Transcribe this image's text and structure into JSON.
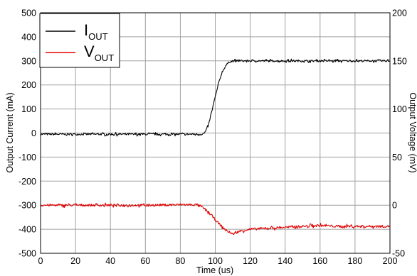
{
  "chart_data": {
    "type": "line",
    "title": "",
    "xlabel": "Time (us)",
    "ylabel_left": "Output Current (mA)",
    "ylabel_right": "Output Voltage (mV)",
    "xlim": [
      0,
      200
    ],
    "ylim_left": [
      -500,
      500
    ],
    "ylim_right": [
      -50,
      200
    ],
    "x_ticks": [
      "0",
      "20",
      "40",
      "60",
      "80",
      "100",
      "120",
      "140",
      "160",
      "180",
      "200"
    ],
    "y_left_ticks": [
      "500",
      "400",
      "300",
      "200",
      "100",
      "0",
      "-100",
      "-200",
      "-300",
      "-400",
      "-500"
    ],
    "y_right_ticks": [
      "200",
      "150",
      "100",
      "50",
      "0",
      "-50"
    ],
    "grid": true,
    "legend_position": "top-left",
    "series": [
      {
        "name": "I",
        "subscript": "OUT",
        "axis": "left",
        "color": "#000000",
        "x": [
          0,
          20,
          40,
          60,
          80,
          90,
          92,
          94,
          96,
          98,
          100,
          102,
          104,
          106,
          108,
          110,
          120,
          140,
          160,
          180,
          200
        ],
        "y": [
          -5,
          -5,
          -5,
          -5,
          -5,
          -5,
          -5,
          0,
          30,
          90,
          150,
          210,
          255,
          280,
          296,
          300,
          300,
          300,
          300,
          300,
          300
        ]
      },
      {
        "name": "V",
        "subscript": "OUT",
        "axis": "right",
        "color": "#e00000",
        "x": [
          0,
          20,
          40,
          60,
          80,
          90,
          94,
          98,
          102,
          106,
          110,
          114,
          120,
          130,
          140,
          150,
          160,
          170,
          180,
          200
        ],
        "y": [
          0,
          0,
          0,
          0,
          0.5,
          0.5,
          -4,
          -11,
          -19,
          -26,
          -30,
          -27,
          -25,
          -24,
          -23,
          -22,
          -21,
          -22,
          -22,
          -22
        ]
      }
    ]
  }
}
